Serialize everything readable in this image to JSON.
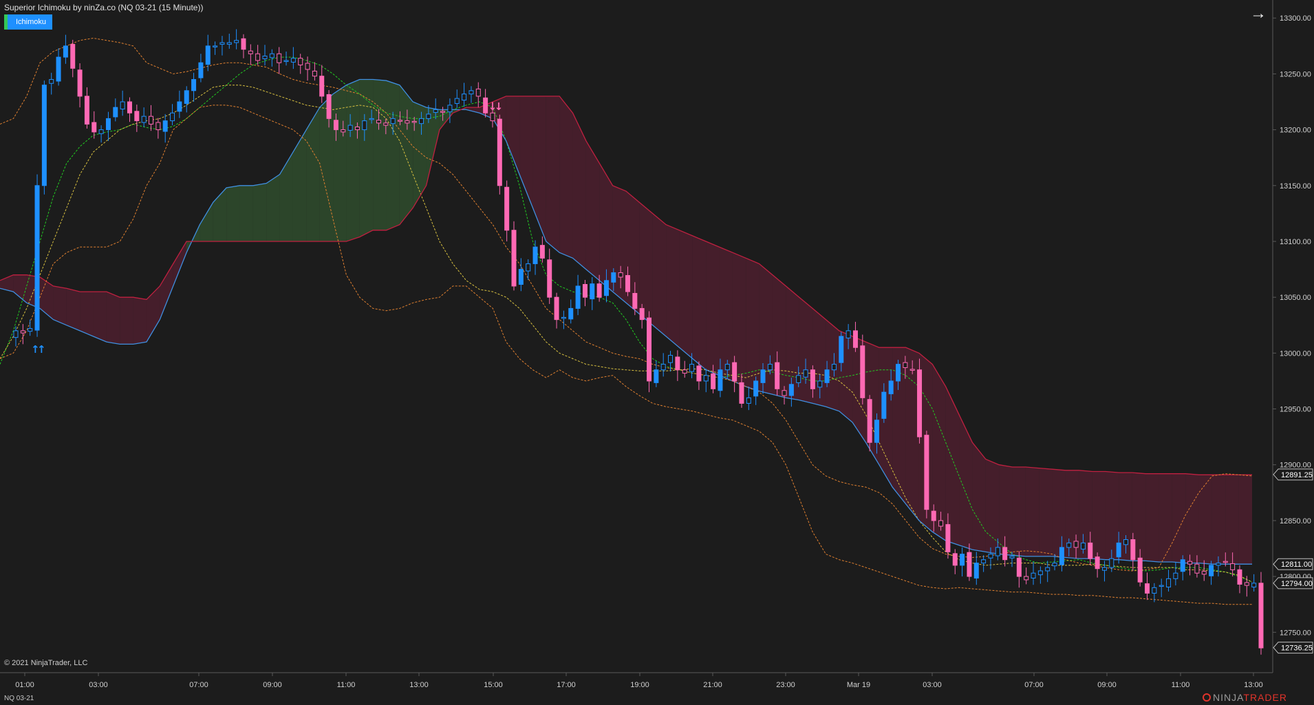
{
  "header": {
    "title": "Superior Ichimoku by ninZa.co (NQ 03-21 (15 Minute))",
    "badge_label": "Ichimoku"
  },
  "footer": {
    "copyright": "© 2021 NinjaTrader, LLC",
    "instrument": "NQ 03-21"
  },
  "brand": {
    "ninja": "NINJA",
    "trader": "TRADER"
  },
  "icons": {
    "expand": "arrow-right-icon",
    "signal_up": "arrow-up-icon",
    "signal_down": "arrow-down-icon"
  },
  "colors": {
    "background": "#1c1c1c",
    "bull_candle": "#1e90ff",
    "bear_candle": "#ff69b4",
    "kumo_bull": "#2f4a2c",
    "kumo_bear": "#4a1f2e",
    "span_a_line": "#3f8fe0",
    "span_b_line": "#c02040",
    "tenkan": "#22cc22",
    "kijun": "#d8c040",
    "bands": "#e08030",
    "axis_text": "#d0d0d0"
  },
  "chart_data": {
    "type": "candlestick",
    "ylim": [
      12720,
      13310
    ],
    "y_ticks": [
      "13300.00",
      "13250.00",
      "13200.00",
      "13150.00",
      "13100.00",
      "13050.00",
      "13000.00",
      "12950.00",
      "12900.00",
      "12850.00",
      "12800.00",
      "12750.00"
    ],
    "x_ticks": [
      "01:00",
      "03:00",
      "07:00",
      "09:00",
      "11:00",
      "13:00",
      "15:00",
      "17:00",
      "19:00",
      "21:00",
      "23:00",
      "Mar 19",
      "03:00",
      "07:00",
      "09:00",
      "11:00",
      "13:00"
    ],
    "price_labels": [
      {
        "text": "12891.25",
        "value": 12891.25
      },
      {
        "text": "12811.00",
        "value": 12811.0
      },
      {
        "text": "12794.00",
        "value": 12794.0
      },
      {
        "text": "12736.25",
        "value": 12736.25
      }
    ],
    "signals": [
      {
        "type": "buy",
        "bar_index": 1,
        "count": 2
      },
      {
        "type": "sell",
        "bar_index": 67,
        "count": 2
      }
    ],
    "closes": [
      13020,
      13018,
      13022,
      13150,
      13240,
      13245,
      13265,
      13275,
      13255,
      13230,
      13205,
      13198,
      13200,
      13210,
      13220,
      13225,
      13215,
      13208,
      13212,
      13205,
      13200,
      13208,
      13215,
      13225,
      13235,
      13245,
      13260,
      13275,
      13275,
      13278,
      13278,
      13280,
      13272,
      13268,
      13262,
      13266,
      13268,
      13260,
      13262,
      13264,
      13258,
      13254,
      13248,
      13230,
      13210,
      13200,
      13198,
      13204,
      13200,
      13208,
      13210,
      13206,
      13204,
      13210,
      13208,
      13206,
      13207,
      13210,
      13214,
      13218,
      13216,
      13222,
      13228,
      13232,
      13235,
      13230,
      13215,
      13208,
      13150,
      13110,
      13060,
      13075,
      13080,
      13095,
      13085,
      13050,
      13030,
      13032,
      13040,
      13060,
      13050,
      13062,
      13050,
      13065,
      13072,
      13068,
      13055,
      13040,
      13030,
      12975,
      12985,
      12990,
      12998,
      12985,
      12982,
      12990,
      12975,
      12980,
      12968,
      12985,
      12990,
      12975,
      12955,
      12960,
      12975,
      12985,
      12990,
      12968,
      12962,
      12972,
      12980,
      12985,
      12968,
      12975,
      12985,
      12990,
      13015,
      13020,
      13005,
      12960,
      12920,
      12940,
      12965,
      12975,
      12990,
      12987,
      12985,
      12925,
      12860,
      12850,
      12845,
      12822,
      12810,
      12820,
      12800,
      12812,
      12815,
      12820,
      12826,
      12815,
      12818,
      12800,
      12797,
      12803,
      12805,
      12808,
      12812,
      12826,
      12830,
      12826,
      12830,
      12816,
      12807,
      12808,
      12816,
      12830,
      12833,
      12815,
      12795,
      12785,
      12790,
      12792,
      12798,
      12803,
      12815,
      12811,
      12803,
      12802,
      12810,
      12812,
      12813,
      12806,
      12793,
      12792,
      12794,
      12736
    ],
    "series": [
      {
        "name": "Tenkan",
        "values": [
          12990,
          13020,
          13060,
          13100,
          13140,
          13170,
          13185,
          13195,
          13198,
          13200,
          13205,
          13202,
          13200,
          13203,
          13210,
          13220,
          13230,
          13240,
          13250,
          13258,
          13262,
          13265,
          13265,
          13262,
          13258,
          13250,
          13240,
          13232,
          13222,
          13215,
          13212,
          13210,
          13210,
          13212,
          13218,
          13222,
          13225,
          13220,
          13190,
          13150,
          13100,
          13070,
          13060,
          13055,
          13052,
          13050,
          13045,
          13030,
          13010,
          12995,
          12988,
          12985,
          12982,
          12980,
          12978,
          12980,
          12982,
          12985,
          12983,
          12980,
          12978,
          12975,
          12975,
          12978,
          12980,
          12983,
          12985,
          12985,
          12980,
          12970,
          12950,
          12920,
          12890,
          12860,
          12840,
          12830,
          12820,
          12815,
          12812,
          12813,
          12814,
          12815,
          12812,
          12810,
          12808,
          12806,
          12805,
          12806,
          12808,
          12808,
          12808,
          12806,
          12804,
          12800,
          12795
        ]
      },
      {
        "name": "Kijun",
        "values": [
          12995,
          13015,
          13040,
          13070,
          13100,
          13130,
          13160,
          13180,
          13190,
          13200,
          13205,
          13208,
          13210,
          13215,
          13222,
          13230,
          13238,
          13240,
          13240,
          13238,
          13234,
          13230,
          13226,
          13222,
          13220,
          13218,
          13220,
          13222,
          13220,
          13210,
          13190,
          13160,
          13130,
          13100,
          13080,
          13065,
          13057,
          13055,
          13050,
          13040,
          13025,
          13010,
          13000,
          12995,
          12990,
          12988,
          12986,
          12985,
          12984,
          12984,
          12984,
          12985,
          12986,
          12985,
          12982,
          12980,
          12978,
          12982,
          12985,
          12984,
          12982,
          12982,
          12980,
          12975,
          12965,
          12945,
          12920,
          12895,
          12870,
          12850,
          12835,
          12822,
          12815,
          12812,
          12810,
          12811,
          12812,
          12812,
          12812,
          12810,
          12810,
          12810,
          12811,
          12810,
          12809,
          12808,
          12808,
          12808,
          12808,
          12806,
          12806,
          12805,
          12804,
          12801,
          12795
        ]
      },
      {
        "name": "SpanA",
        "values": [
          13058,
          13055,
          13045,
          13040,
          13030,
          13025,
          13020,
          13015,
          13010,
          13008,
          13008,
          13010,
          13030,
          13060,
          13090,
          13115,
          13135,
          13148,
          13150,
          13150,
          13152,
          13160,
          13180,
          13200,
          13220,
          13232,
          13240,
          13245,
          13245,
          13244,
          13240,
          13225,
          13220,
          13218,
          13218,
          13218,
          13215,
          13210,
          13190,
          13160,
          13130,
          13100,
          13090,
          13085,
          13075,
          13065,
          13055,
          13045,
          13035,
          13025,
          13015,
          13005,
          12995,
          12985,
          12980,
          12975,
          12970,
          12966,
          12963,
          12960,
          12958,
          12955,
          12952,
          12948,
          12938,
          12920,
          12900,
          12880,
          12865,
          12850,
          12840,
          12832,
          12828,
          12824,
          12822,
          12820,
          12819,
          12818,
          12818,
          12818,
          12817,
          12816,
          12816,
          12815,
          12815,
          12814,
          12814,
          12813,
          12813,
          12812,
          12812,
          12811,
          12811,
          12811,
          12811
        ]
      },
      {
        "name": "SpanB",
        "values": [
          13065,
          13070,
          13070,
          13068,
          13060,
          13058,
          13055,
          13055,
          13055,
          13050,
          13050,
          13048,
          13060,
          13080,
          13100,
          13100,
          13100,
          13100,
          13100,
          13100,
          13100,
          13100,
          13100,
          13100,
          13100,
          13100,
          13100,
          13104,
          13110,
          13110,
          13115,
          13130,
          13150,
          13200,
          13215,
          13220,
          13220,
          13225,
          13230,
          13230,
          13230,
          13230,
          13230,
          13215,
          13190,
          13170,
          13150,
          13145,
          13135,
          13125,
          13115,
          13110,
          13105,
          13100,
          13095,
          13090,
          13085,
          13080,
          13070,
          13060,
          13050,
          13040,
          13030,
          13020,
          13015,
          13010,
          13005,
          13005,
          13005,
          13000,
          12990,
          12970,
          12945,
          12920,
          12905,
          12900,
          12898,
          12898,
          12897,
          12896,
          12895,
          12895,
          12894,
          12894,
          12893,
          12893,
          12892,
          12892,
          12892,
          12892,
          12891,
          12891,
          12891,
          12891,
          12891
        ]
      },
      {
        "name": "UpperBand",
        "values": [
          13205,
          13210,
          13230,
          13260,
          13270,
          13275,
          13280,
          13282,
          13280,
          13278,
          13275,
          13260,
          13255,
          13250,
          13252,
          13255,
          13258,
          13260,
          13260,
          13258,
          13256,
          13250,
          13245,
          13242,
          13240,
          13238,
          13235,
          13232,
          13225,
          13215,
          13200,
          13185,
          13175,
          13170,
          13160,
          13145,
          13130,
          13115,
          13095,
          13080,
          13060,
          13040,
          13030,
          13020,
          13010,
          13005,
          13000,
          12997,
          12995,
          12990,
          12987,
          12985,
          12982,
          12980,
          12978,
          12975,
          12970,
          12965,
          12955,
          12940,
          12920,
          12900,
          12890,
          12885,
          12882,
          12880,
          12875,
          12865,
          12850,
          12835,
          12825,
          12820,
          12818,
          12817,
          12818,
          12820,
          12822,
          12823,
          12822,
          12820,
          12815,
          12812,
          12810,
          12808,
          12806,
          12805,
          12806,
          12808,
          12830,
          12855,
          12875,
          12890,
          12892,
          12891,
          12890
        ]
      },
      {
        "name": "LowerBand",
        "values": [
          12995,
          13000,
          13020,
          13050,
          13080,
          13090,
          13095,
          13095,
          13095,
          13100,
          13120,
          13150,
          13170,
          13200,
          13210,
          13220,
          13222,
          13222,
          13220,
          13215,
          13210,
          13205,
          13200,
          13190,
          13170,
          13120,
          13070,
          13050,
          13040,
          13038,
          13040,
          13045,
          13048,
          13050,
          13060,
          13060,
          13050,
          13040,
          13010,
          12995,
          12985,
          12978,
          12985,
          12978,
          12975,
          12978,
          12980,
          12970,
          12962,
          12955,
          12952,
          12950,
          12948,
          12945,
          12942,
          12940,
          12935,
          12930,
          12920,
          12900,
          12870,
          12840,
          12820,
          12815,
          12812,
          12808,
          12804,
          12800,
          12796,
          12792,
          12790,
          12789,
          12790,
          12789,
          12788,
          12787,
          12786,
          12786,
          12785,
          12784,
          12784,
          12783,
          12783,
          12782,
          12781,
          12781,
          12780,
          12779,
          12778,
          12777,
          12776,
          12776,
          12775,
          12775,
          12775
        ]
      }
    ]
  }
}
